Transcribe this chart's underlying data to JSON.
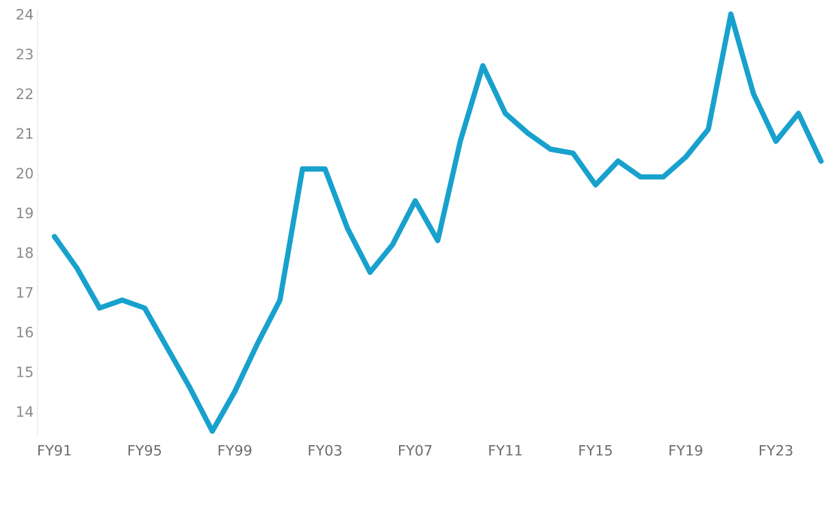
{
  "chart_data": {
    "type": "line",
    "categories": [
      "FY91",
      null,
      null,
      null,
      "FY95",
      null,
      null,
      null,
      "FY99",
      null,
      null,
      null,
      "FY03",
      null,
      null,
      null,
      "FY07",
      null,
      null,
      null,
      "FY11",
      null,
      null,
      null,
      "FY15",
      null,
      null,
      null,
      "FY19",
      null,
      null,
      null,
      "FY23",
      null,
      null
    ],
    "series": [
      {
        "color": "#18a1cd",
        "values": [
          18.4,
          17.6,
          16.6,
          16.8,
          16.6,
          15.6,
          14.6,
          13.5,
          14.5,
          15.7,
          16.8,
          20.1,
          20.1,
          18.6,
          17.5,
          18.2,
          19.3,
          18.3,
          20.8,
          22.7,
          21.5,
          21.0,
          20.6,
          20.5,
          19.7,
          20.3,
          19.9,
          19.9,
          20.4,
          21.1,
          24.0,
          22.0,
          20.8,
          21.5,
          20.3
        ]
      }
    ],
    "ylim": [
      13.4,
      24.1
    ],
    "yticks": [
      14,
      15,
      16,
      17,
      18,
      19,
      20,
      21,
      22,
      23,
      24
    ],
    "grid": false,
    "marker": "none",
    "line_style": "solid"
  }
}
